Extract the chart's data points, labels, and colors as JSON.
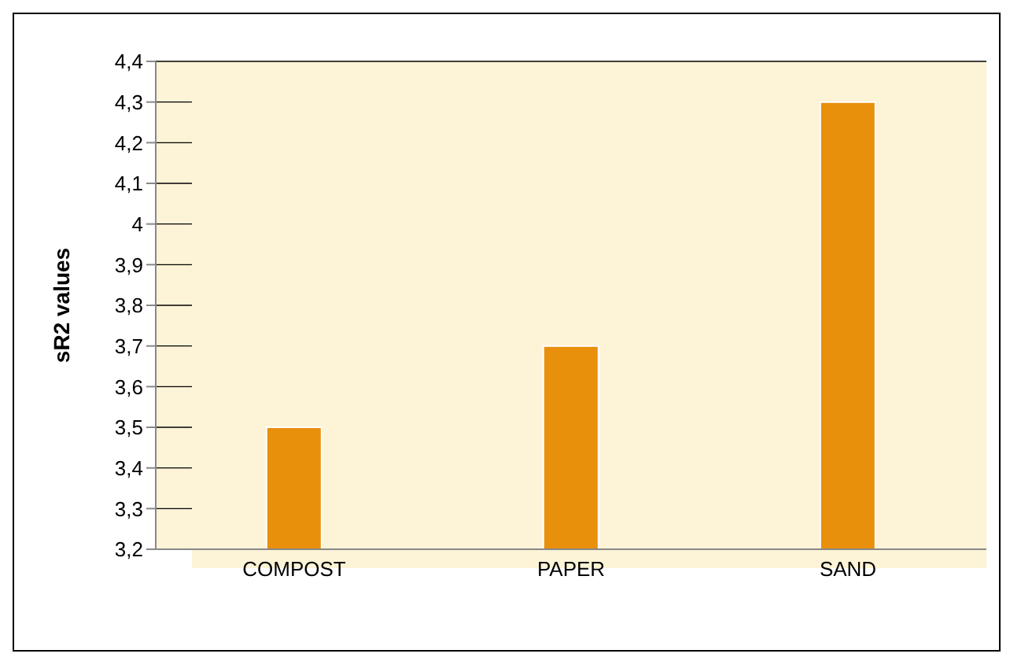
{
  "chart_data": {
    "type": "bar",
    "ylabel": "sR2 values",
    "categories": [
      "COMPOST",
      "PAPER",
      "SAND"
    ],
    "values": [
      3.5,
      3.7,
      4.3
    ],
    "color": "#e8900c",
    "ylim": [
      3.2,
      4.4
    ],
    "yticks": [
      {
        "value": 3.2,
        "label": "3,2"
      },
      {
        "value": 3.3,
        "label": "3,3"
      },
      {
        "value": 3.4,
        "label": "3,4"
      },
      {
        "value": 3.5,
        "label": "3,5"
      },
      {
        "value": 3.6,
        "label": "3,6"
      },
      {
        "value": 3.7,
        "label": "3,7"
      },
      {
        "value": 3.8,
        "label": "3,8"
      },
      {
        "value": 3.9,
        "label": "3,9"
      },
      {
        "value": 4,
        "label": "4"
      },
      {
        "value": 4.1,
        "label": "4,1"
      },
      {
        "value": 4.2,
        "label": "4,2"
      },
      {
        "value": 4.3,
        "label": "4,3"
      },
      {
        "value": 4.4,
        "label": "4,4"
      }
    ],
    "grid": "y"
  }
}
